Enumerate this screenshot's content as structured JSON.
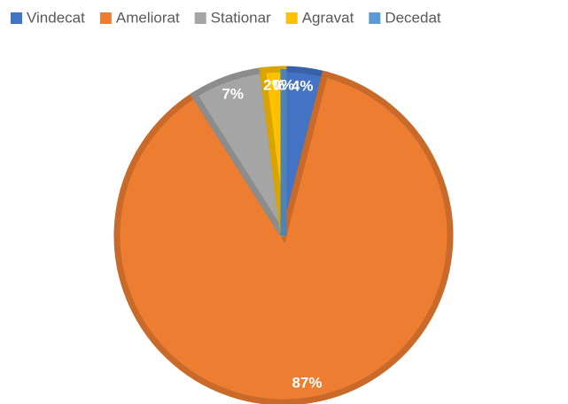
{
  "chart_data": {
    "type": "pie",
    "categories": [
      "Vindecat",
      "Ameliorat",
      "Stationar",
      "Agravat",
      "Decedat"
    ],
    "values": [
      4,
      87,
      7,
      2,
      0
    ],
    "value_labels": [
      "4%",
      "87%",
      "7%",
      "2%",
      "0%"
    ],
    "colors": [
      "#4472c4",
      "#ed7d31",
      "#a5a5a5",
      "#ffc000",
      "#5b9bd5"
    ],
    "legend": "top"
  }
}
